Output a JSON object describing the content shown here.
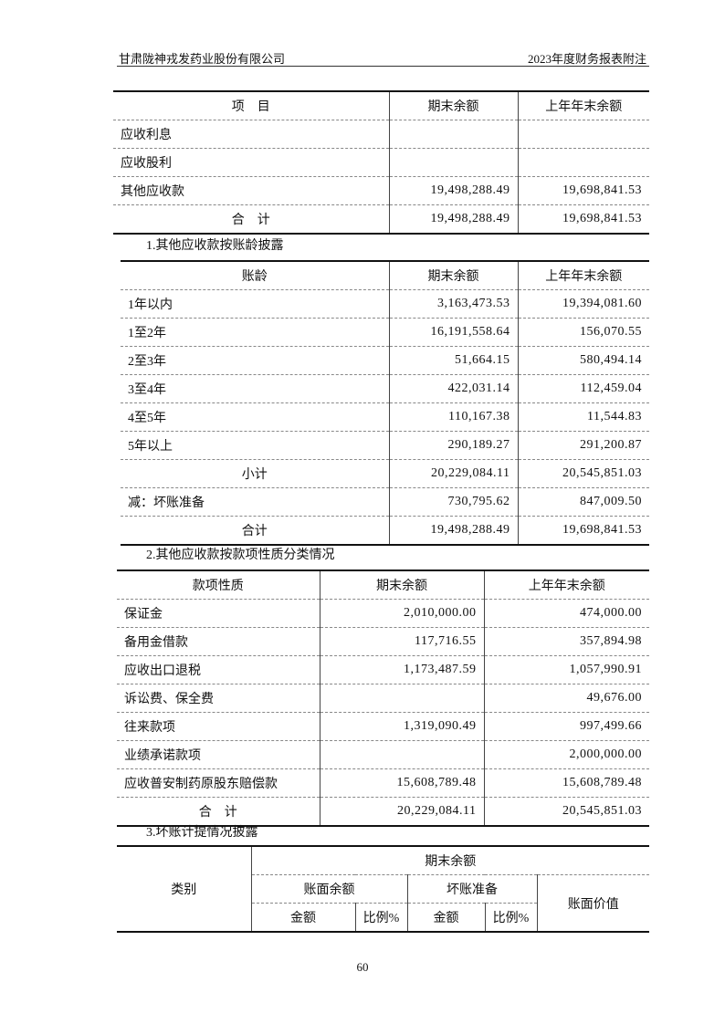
{
  "header": {
    "company": "甘肃陇神戎发药业股份有限公司",
    "report": "2023年度财务报表附注"
  },
  "table1": {
    "columns": [
      "项　目",
      "期末余额",
      "上年年末余额"
    ],
    "rows": [
      {
        "item": "应收利息",
        "end": "",
        "prev": ""
      },
      {
        "item": "应收股利",
        "end": "",
        "prev": ""
      },
      {
        "item": "其他应收款",
        "end": "19,498,288.49",
        "prev": "19,698,841.53"
      }
    ],
    "total": {
      "item": "合　计",
      "end": "19,498,288.49",
      "prev": "19,698,841.53"
    }
  },
  "caption1": "1.其他应收款按账龄披露",
  "table2": {
    "columns": [
      "账龄",
      "期末余额",
      "上年年末余额"
    ],
    "rows": [
      {
        "item": "1年以内",
        "end": "3,163,473.53",
        "prev": "19,394,081.60"
      },
      {
        "item": "1至2年",
        "end": "16,191,558.64",
        "prev": "156,070.55"
      },
      {
        "item": "2至3年",
        "end": "51,664.15",
        "prev": "580,494.14"
      },
      {
        "item": "3至4年",
        "end": "422,031.14",
        "prev": "112,459.04"
      },
      {
        "item": "4至5年",
        "end": "110,167.38",
        "prev": "11,544.83"
      },
      {
        "item": "5年以上",
        "end": "290,189.27",
        "prev": "291,200.87"
      }
    ],
    "subtotal": {
      "item": "小计",
      "end": "20,229,084.11",
      "prev": "20,545,851.03"
    },
    "less": {
      "item": "减：坏账准备",
      "end": "730,795.62",
      "prev": "847,009.50"
    },
    "total": {
      "item": "合计",
      "end": "19,498,288.49",
      "prev": "19,698,841.53"
    }
  },
  "caption2": "2.其他应收款按款项性质分类情况",
  "table3": {
    "columns": [
      "款项性质",
      "期末余额",
      "上年年末余额"
    ],
    "rows": [
      {
        "item": "保证金",
        "end": "2,010,000.00",
        "prev": "474,000.00"
      },
      {
        "item": "备用金借款",
        "end": "117,716.55",
        "prev": "357,894.98"
      },
      {
        "item": "应收出口退税",
        "end": "1,173,487.59",
        "prev": "1,057,990.91"
      },
      {
        "item": "诉讼费、保全费",
        "end": "",
        "prev": "49,676.00"
      },
      {
        "item": "往来款项",
        "end": "1,319,090.49",
        "prev": "997,499.66"
      },
      {
        "item": "业绩承诺款项",
        "end": "",
        "prev": "2,000,000.00"
      },
      {
        "item": "应收普安制药原股东赔偿款",
        "end": "15,608,789.48",
        "prev": "15,608,789.48"
      }
    ],
    "total": {
      "item": "合　计",
      "end": "20,229,084.11",
      "prev": "20,545,851.03"
    }
  },
  "caption3": "3.坏账计提情况披露",
  "table4": {
    "category": "类别",
    "period": "期末余额",
    "book_balance": "账面余额",
    "bad_debt": "坏账准备",
    "book_value": "账面价值",
    "amount": "金额",
    "ratio": "比例%"
  },
  "page_number": "60"
}
